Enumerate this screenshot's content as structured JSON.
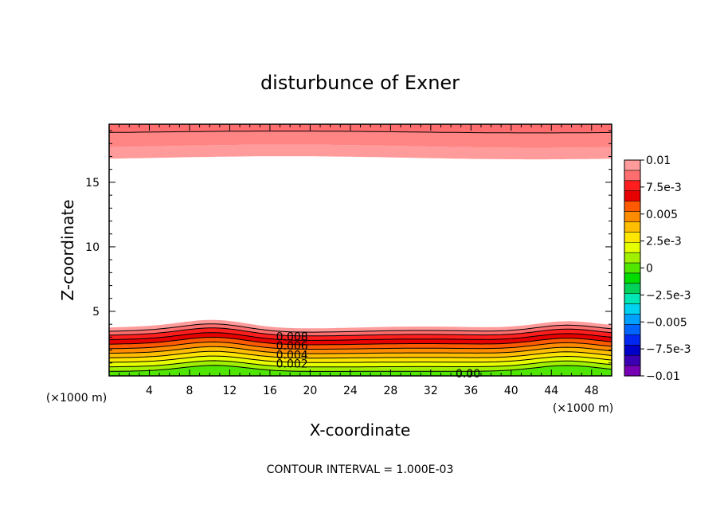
{
  "chart_data": {
    "type": "filled-contour",
    "title": "disturbunce of Exner",
    "xlabel": "X-coordinate",
    "ylabel": "Z-coordinate",
    "x_unit_label": "(×1000 m)",
    "x_unit_label_right": "(×1000 m)",
    "xlim": [
      0,
      50
    ],
    "ylim": [
      0,
      19.5
    ],
    "x_ticks": [
      "4",
      "8",
      "12",
      "16",
      "20",
      "24",
      "28",
      "32",
      "36",
      "40",
      "44",
      "48"
    ],
    "y_ticks": [
      "5",
      "10",
      "15"
    ],
    "footer": "CONTOUR INTERVAL = 1.000E-03",
    "contour_labels": [
      "0.008",
      "0.006",
      "0.004",
      "0.002",
      "0.00"
    ],
    "colorbar": {
      "labels": [
        "0.01",
        "7.5e-3",
        "0.005",
        "2.5e-3",
        "0",
        "−2.5e-3",
        "−0.005",
        "−7.5e-3",
        "−0.01"
      ],
      "colors": [
        "#ff9b9b",
        "#ff6e6e",
        "#ff1e1e",
        "#e60000",
        "#ff5a00",
        "#ff8c00",
        "#ffbe00",
        "#ffe600",
        "#e6ff00",
        "#a0f000",
        "#50e600",
        "#00dc00",
        "#00d25a",
        "#00e6b4",
        "#00d2f0",
        "#00a0ff",
        "#0064ff",
        "#0028f0",
        "#0000c8",
        "#3c00b4",
        "#7800b4"
      ]
    },
    "grid": false,
    "legend": "colorbar-right",
    "colors": {
      "top_band_dark": "#ff6e6e",
      "top_band_mid": "#ff8484",
      "top_band_light": "#ff9b9b"
    }
  }
}
